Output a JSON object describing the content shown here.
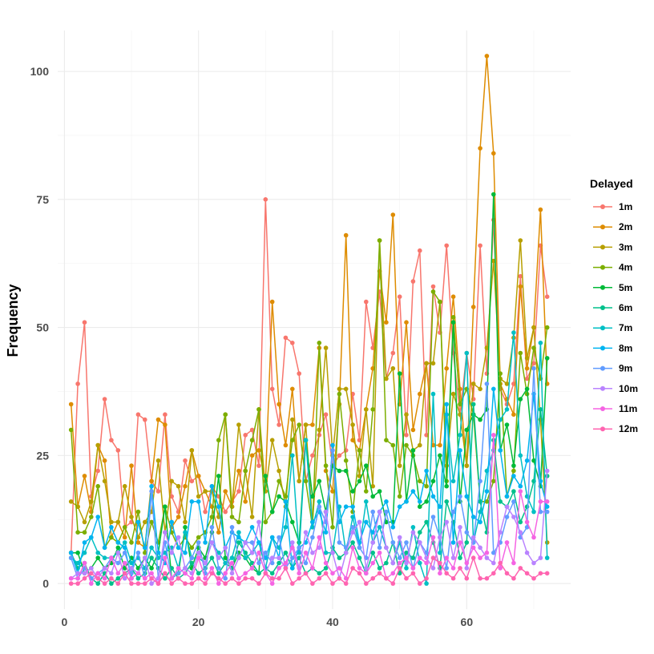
{
  "chart_data": {
    "type": "line",
    "title": "",
    "xlabel": "",
    "ylabel": "Frequency",
    "xlim": [
      -1,
      75.5
    ],
    "ylim": [
      -5,
      108
    ],
    "x_ticks": [
      0,
      20,
      40,
      60
    ],
    "y_ticks": [
      0,
      25,
      50,
      75,
      100
    ],
    "grid": true,
    "legend": {
      "title": "Delayed",
      "position": "right"
    },
    "x": [
      1,
      2,
      3,
      4,
      5,
      6,
      7,
      8,
      9,
      10,
      11,
      12,
      13,
      14,
      15,
      16,
      17,
      18,
      19,
      20,
      21,
      22,
      23,
      24,
      25,
      26,
      27,
      28,
      29,
      30,
      31,
      32,
      33,
      34,
      35,
      36,
      37,
      38,
      39,
      40,
      41,
      42,
      43,
      44,
      45,
      46,
      47,
      48,
      49,
      50,
      51,
      52,
      53,
      54,
      55,
      56,
      57,
      58,
      59,
      60,
      61,
      62,
      63,
      64,
      65,
      66,
      67,
      68,
      69,
      70,
      71,
      72
    ],
    "series": [
      {
        "name": "1m",
        "color": "#F8766D",
        "values": [
          6,
          39,
          51,
          17,
          22,
          36,
          28,
          26,
          11,
          12,
          33,
          32,
          20,
          18,
          33,
          17,
          14,
          24,
          20,
          21,
          14,
          19,
          17,
          14,
          16,
          18,
          29,
          30,
          23,
          75,
          38,
          31,
          48,
          47,
          41,
          20,
          25,
          29,
          33,
          23,
          25,
          26,
          37,
          28,
          55,
          46,
          57,
          40,
          45,
          56,
          29,
          59,
          65,
          29,
          58,
          49,
          66,
          45,
          33,
          45,
          36,
          66,
          41,
          71,
          38,
          35,
          39,
          60,
          40,
          43,
          66,
          56
        ]
      },
      {
        "name": "2m",
        "color": "#DE8C00",
        "values": [
          35,
          15,
          21,
          14,
          27,
          24,
          9,
          12,
          9,
          23,
          8,
          7,
          20,
          32,
          31,
          11,
          13,
          19,
          26,
          21,
          18,
          15,
          10,
          18,
          15,
          22,
          16,
          25,
          26,
          20,
          55,
          35,
          27,
          38,
          20,
          31,
          31,
          46,
          22,
          18,
          35,
          68,
          28,
          26,
          34,
          42,
          61,
          51,
          72,
          35,
          51,
          30,
          37,
          43,
          27,
          27,
          42,
          56,
          38,
          23,
          54,
          85,
          103,
          84,
          39,
          36,
          33,
          58,
          42,
          50,
          73,
          39
        ]
      },
      {
        "name": "3m",
        "color": "#B79F00",
        "values": [
          16,
          15,
          12,
          16,
          27,
          20,
          12,
          12,
          19,
          13,
          9,
          12,
          14,
          24,
          10,
          20,
          19,
          12,
          26,
          17,
          18,
          18,
          13,
          33,
          15,
          31,
          22,
          13,
          34,
          18,
          28,
          22,
          15,
          32,
          20,
          31,
          12,
          30,
          46,
          25,
          38,
          38,
          31,
          21,
          34,
          19,
          67,
          40,
          42,
          23,
          33,
          26,
          27,
          43,
          43,
          55,
          23,
          37,
          33,
          23,
          39,
          38,
          46,
          63,
          40,
          39,
          48,
          67,
          44,
          50,
          32,
          8
        ]
      },
      {
        "name": "4m",
        "color": "#7CAE00",
        "values": [
          30,
          10,
          10,
          13,
          19,
          7,
          9,
          8,
          11,
          8,
          14,
          6,
          12,
          8,
          15,
          10,
          7,
          9,
          7,
          9,
          10,
          13,
          28,
          33,
          13,
          12,
          22,
          28,
          34,
          12,
          14,
          20,
          17,
          28,
          31,
          20,
          11,
          47,
          23,
          11,
          37,
          24,
          14,
          26,
          18,
          34,
          67,
          28,
          27,
          17,
          27,
          25,
          20,
          19,
          57,
          55,
          20,
          52,
          35,
          38,
          33,
          16,
          16,
          20,
          41,
          17,
          22,
          45,
          37,
          46,
          40,
          50
        ]
      },
      {
        "name": "5m",
        "color": "#00BA38",
        "values": [
          6,
          6,
          2,
          3,
          5,
          3,
          4,
          7,
          3,
          5,
          3,
          5,
          3,
          6,
          15,
          1,
          2,
          11,
          3,
          7,
          5,
          10,
          21,
          5,
          3,
          6,
          5,
          3,
          2,
          21,
          14,
          17,
          16,
          12,
          8,
          28,
          17,
          20,
          14,
          23,
          22,
          22,
          18,
          20,
          23,
          17,
          18,
          12,
          12,
          41,
          16,
          26,
          15,
          16,
          20,
          25,
          19,
          51,
          16,
          30,
          33,
          32,
          34,
          76,
          26,
          31,
          23,
          36,
          38,
          24,
          19,
          44
        ]
      },
      {
        "name": "6m",
        "color": "#00C08B",
        "values": [
          6,
          3,
          4,
          1,
          0,
          2,
          0,
          1,
          2,
          3,
          1,
          2,
          5,
          3,
          1,
          3,
          1,
          2,
          4,
          2,
          3,
          5,
          2,
          4,
          3,
          8,
          6,
          4,
          2,
          3,
          2,
          4,
          6,
          3,
          5,
          2,
          3,
          2,
          3,
          7,
          5,
          6,
          8,
          5,
          2,
          6,
          3,
          4,
          8,
          2,
          6,
          5,
          10,
          12,
          8,
          3,
          16,
          12,
          5,
          8,
          35,
          16,
          10,
          28,
          16,
          15,
          18,
          12,
          15,
          20,
          34,
          21
        ]
      },
      {
        "name": "7m",
        "color": "#00BFC4",
        "values": [
          5,
          4,
          6,
          9,
          6,
          5,
          5,
          6,
          8,
          4,
          5,
          3,
          7,
          5,
          6,
          7,
          3,
          10,
          5,
          5,
          4,
          8,
          6,
          4,
          5,
          10,
          5,
          6,
          8,
          3,
          9,
          7,
          11,
          25,
          6,
          28,
          11,
          16,
          6,
          6,
          15,
          6,
          13,
          7,
          16,
          8,
          11,
          7,
          4,
          8,
          3,
          11,
          4,
          0,
          37,
          6,
          33,
          20,
          29,
          45,
          8,
          14,
          22,
          26,
          32,
          34,
          49,
          25,
          17,
          14,
          47,
          5
        ]
      },
      {
        "name": "8m",
        "color": "#00B4F0",
        "values": [
          6,
          2,
          8,
          9,
          13,
          7,
          11,
          8,
          7,
          1,
          12,
          7,
          19,
          6,
          4,
          12,
          7,
          6,
          16,
          16,
          8,
          19,
          15,
          7,
          10,
          9,
          8,
          11,
          8,
          5,
          9,
          5,
          16,
          3,
          7,
          8,
          12,
          14,
          10,
          27,
          12,
          15,
          15,
          8,
          12,
          10,
          14,
          16,
          11,
          15,
          16,
          18,
          16,
          22,
          17,
          15,
          35,
          8,
          26,
          17,
          13,
          12,
          18,
          38,
          26,
          17,
          21,
          19,
          24,
          37,
          20,
          15
        ]
      },
      {
        "name": "9m",
        "color": "#619CFF",
        "values": [
          5,
          1,
          3,
          1,
          2,
          3,
          5,
          4,
          6,
          2,
          6,
          1,
          18,
          1,
          8,
          1,
          2,
          3,
          5,
          8,
          2,
          11,
          3,
          1,
          11,
          5,
          8,
          8,
          4,
          6,
          4,
          9,
          3,
          5,
          7,
          4,
          9,
          15,
          12,
          26,
          8,
          7,
          11,
          7,
          5,
          14,
          7,
          14,
          8,
          5,
          8,
          3,
          8,
          6,
          13,
          9,
          3,
          14,
          17,
          10,
          8,
          20,
          39,
          6,
          8,
          13,
          16,
          9,
          11,
          42,
          14,
          14
        ]
      },
      {
        "name": "10m",
        "color": "#B983FF",
        "values": [
          1,
          2,
          2,
          3,
          1,
          3,
          2,
          6,
          1,
          3,
          2,
          5,
          0,
          1,
          10,
          6,
          9,
          3,
          2,
          6,
          4,
          8,
          5,
          7,
          2,
          5,
          8,
          6,
          12,
          2,
          5,
          5,
          3,
          8,
          3,
          10,
          6,
          7,
          14,
          6,
          1,
          6,
          10,
          12,
          3,
          8,
          14,
          7,
          4,
          9,
          4,
          10,
          8,
          5,
          3,
          9,
          12,
          5,
          11,
          3,
          9,
          7,
          5,
          4,
          10,
          15,
          13,
          10,
          6,
          4,
          5,
          22
        ]
      },
      {
        "name": "11m",
        "color": "#F564E3",
        "values": [
          1,
          1,
          4,
          0,
          2,
          1,
          5,
          2,
          4,
          1,
          2,
          1,
          2,
          0,
          5,
          1,
          3,
          2,
          1,
          5,
          1,
          3,
          0,
          2,
          4,
          1,
          2,
          3,
          6,
          2,
          0,
          3,
          4,
          7,
          2,
          6,
          3,
          9,
          4,
          2,
          3,
          1,
          7,
          3,
          2,
          4,
          6,
          1,
          2,
          4,
          5,
          3,
          5,
          4,
          9,
          2,
          5,
          3,
          8,
          4,
          7,
          5,
          6,
          29,
          3,
          8,
          4,
          18,
          12,
          9,
          16,
          16
        ]
      },
      {
        "name": "12m",
        "color": "#FF64B0",
        "values": [
          0,
          0,
          1,
          2,
          1,
          0,
          1,
          0,
          2,
          0,
          0,
          0,
          1,
          0,
          2,
          0,
          1,
          0,
          0,
          1,
          0,
          2,
          1,
          0,
          1,
          0,
          1,
          1,
          0,
          2,
          1,
          1,
          3,
          0,
          1,
          2,
          0,
          1,
          2,
          0,
          1,
          0,
          3,
          2,
          0,
          1,
          2,
          1,
          0,
          3,
          1,
          2,
          0,
          1,
          5,
          4,
          2,
          1,
          3,
          1,
          5,
          1,
          1,
          2,
          4,
          2,
          1,
          3,
          2,
          1,
          2,
          2
        ]
      }
    ]
  }
}
